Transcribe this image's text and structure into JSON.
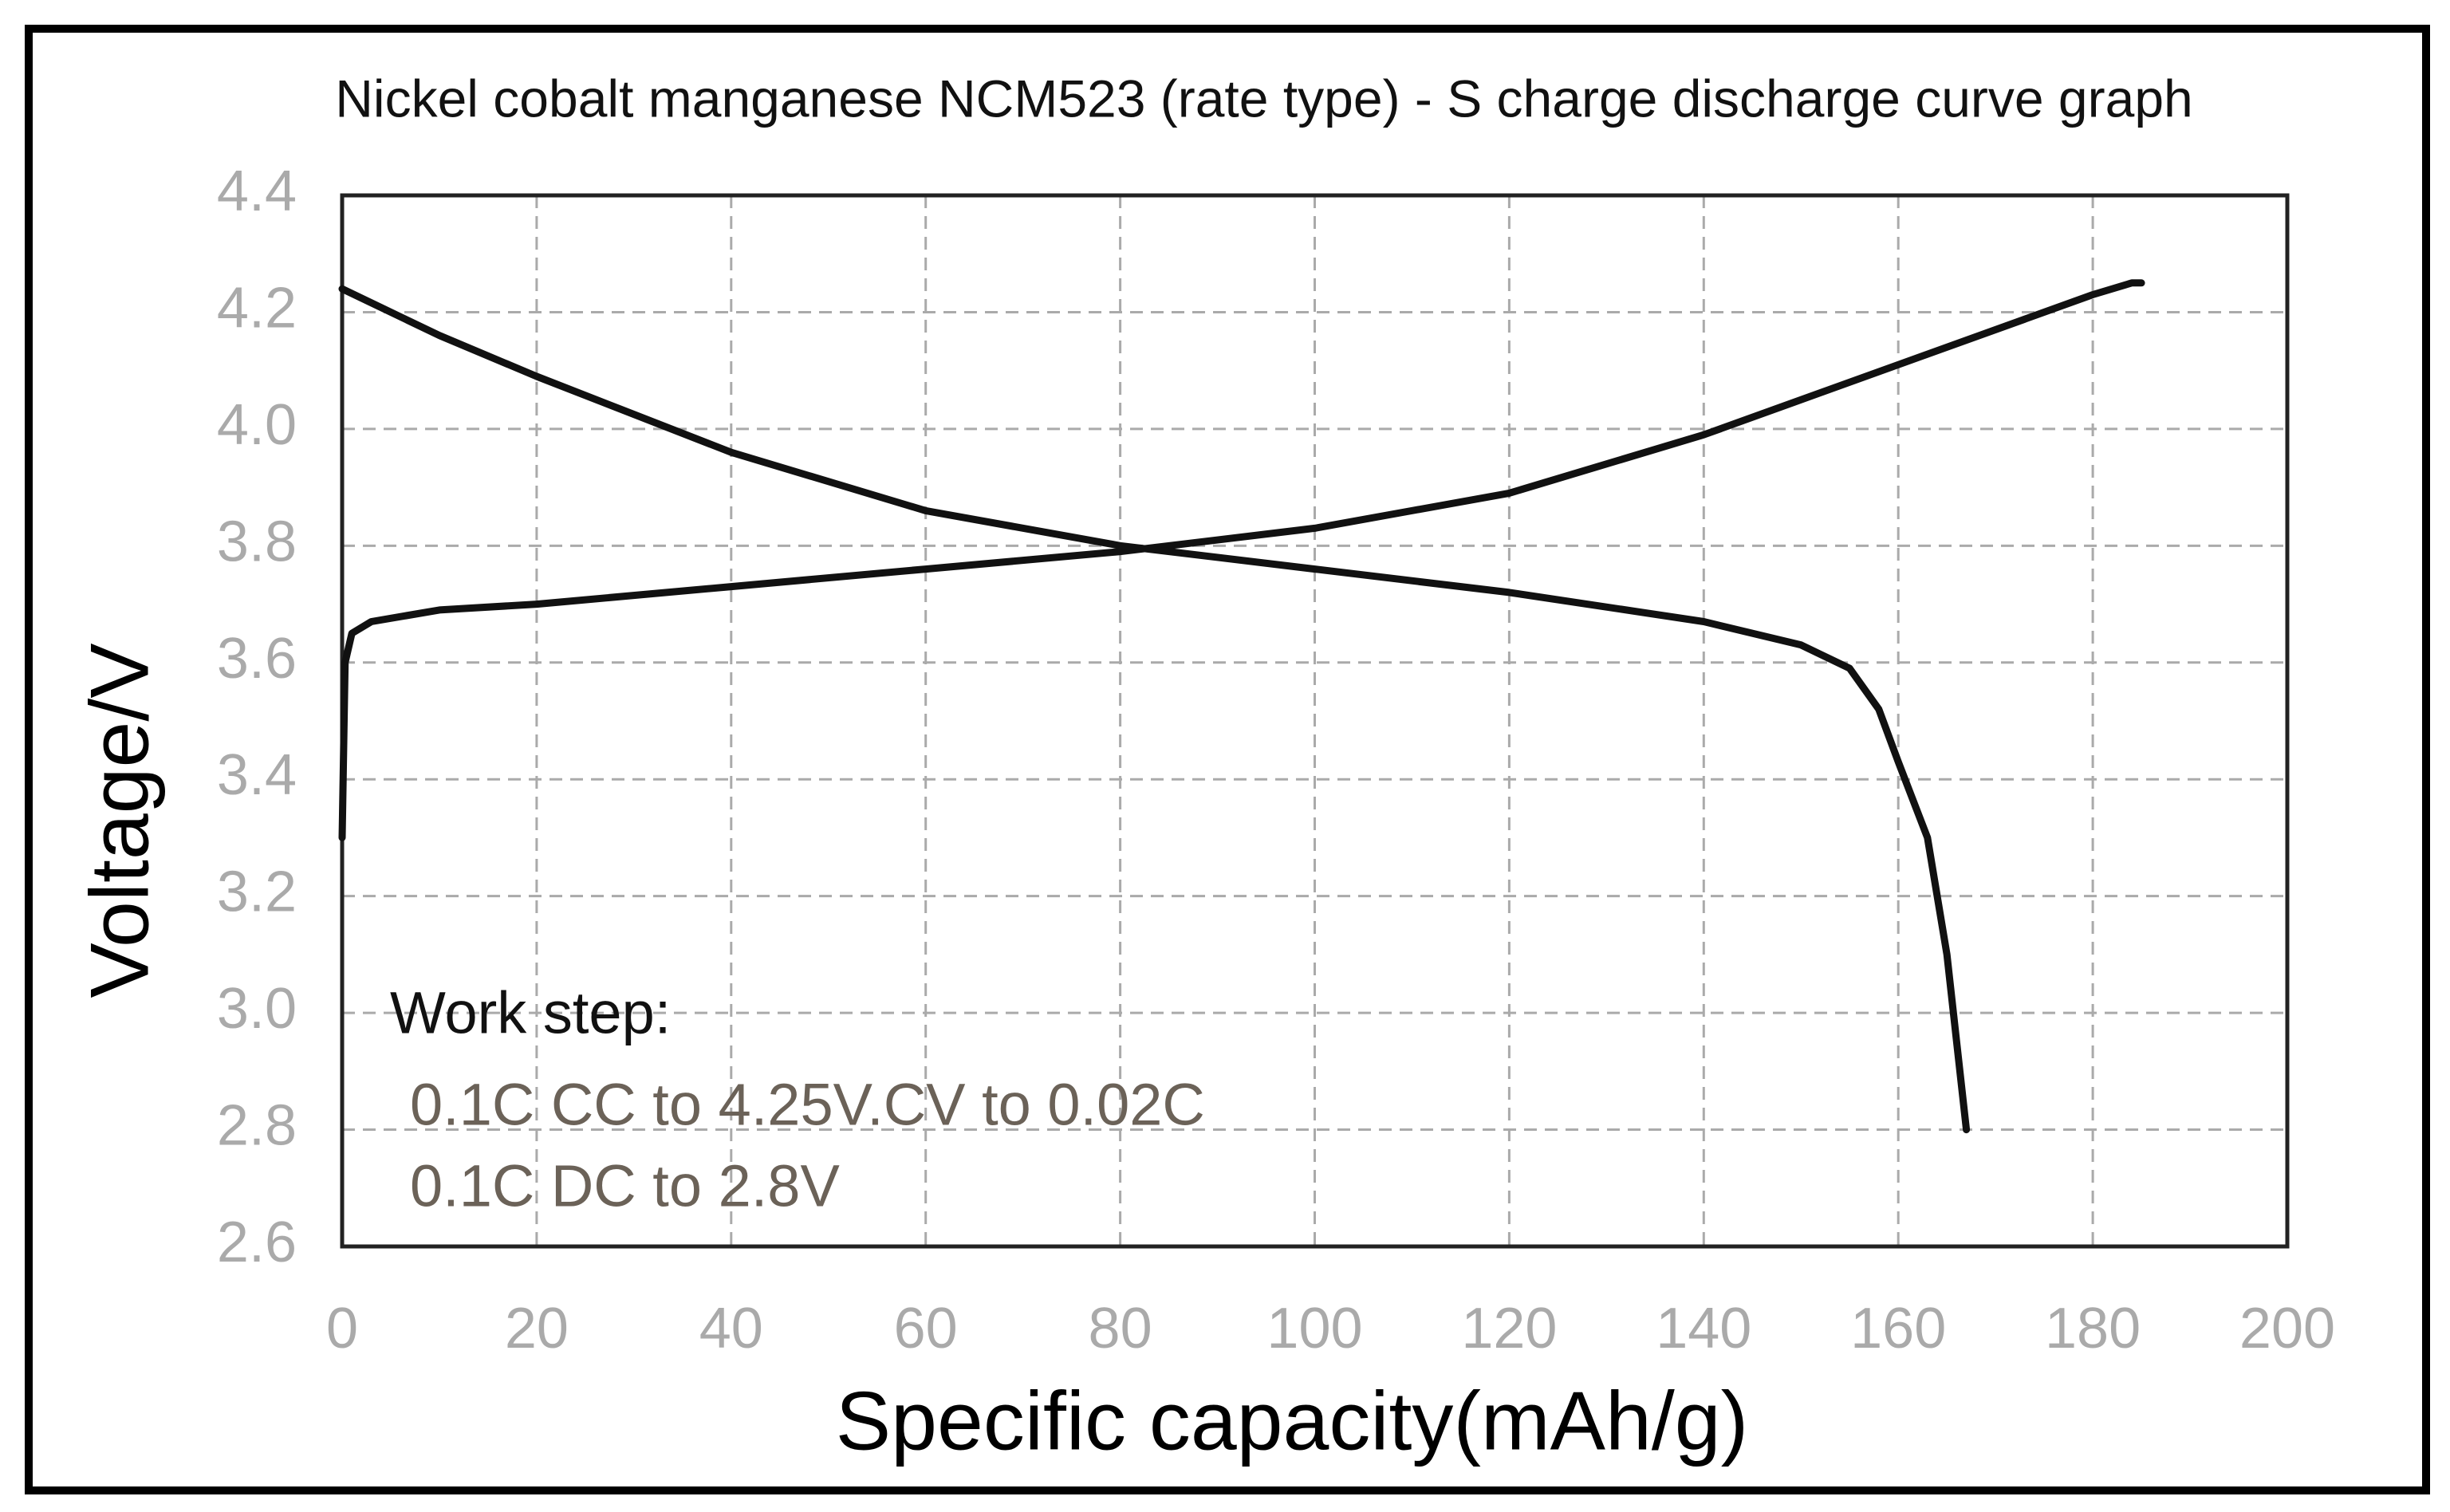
{
  "chart_data": {
    "type": "line",
    "title": "Nickel cobalt manganese NCM523 (rate type) - S charge discharge curve graph",
    "x_label": "Specific capacity(mAh/g)",
    "y_label": "Voltage/V",
    "annotations": [
      "Work step:",
      "0.1C CC to 4.25V.CV to 0.02C",
      "0.1C DC to 2.8V"
    ],
    "series": [
      {
        "color": "#111111",
        "x": [
          0,
          0.3,
          1,
          3,
          10,
          20,
          40,
          60,
          80,
          100,
          120,
          140,
          160,
          180,
          184,
          185
        ],
        "values": [
          3.3,
          3.6,
          3.65,
          3.67,
          3.69,
          3.7,
          3.73,
          3.76,
          3.79,
          3.83,
          3.89,
          3.99,
          4.11,
          4.23,
          4.25,
          4.25
        ]
      },
      {
        "color": "#111111",
        "x": [
          0,
          10,
          20,
          40,
          60,
          80,
          100,
          120,
          140,
          150,
          155,
          158,
          160,
          163,
          165,
          166,
          167
        ],
        "values": [
          4.24,
          4.16,
          4.09,
          3.96,
          3.86,
          3.8,
          3.76,
          3.72,
          3.67,
          3.63,
          3.59,
          3.52,
          3.43,
          3.3,
          3.1,
          2.95,
          2.8
        ]
      }
    ],
    "xlim": [
      0,
      200
    ],
    "xticks": [
      0,
      20,
      40,
      60,
      80,
      100,
      120,
      140,
      160,
      180,
      200
    ],
    "ylim": [
      2.6,
      4.4
    ],
    "yticks": [
      2.6,
      2.8,
      {
        "value": 3,
        "label": "3.0"
      },
      3.2,
      3.4,
      3.6,
      3.8,
      {
        "value": 4,
        "label": "4.0"
      },
      4.2,
      4.4
    ],
    "grid": true
  }
}
